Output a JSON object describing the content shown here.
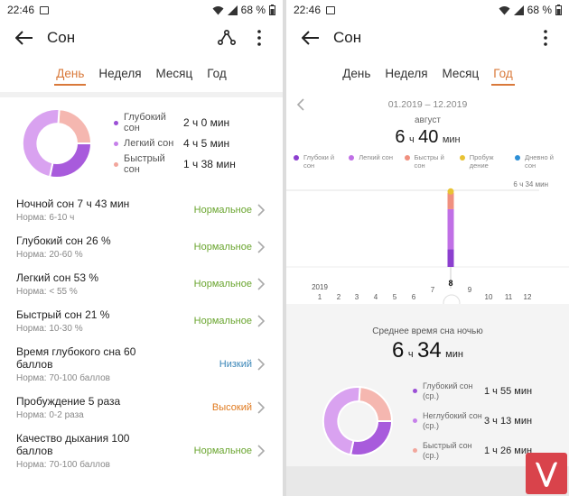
{
  "left": {
    "status": {
      "time": "22:46",
      "battery": "68 %"
    },
    "title": "Сон",
    "tabs": [
      "День",
      "Неделя",
      "Месяц",
      "Год"
    ],
    "donut_legend": [
      {
        "name": "Глубокий сон",
        "value": "2 ч 0 мин",
        "color": "#9b4fd6"
      },
      {
        "name": "Легкий сон",
        "value": "4 ч 5 мин",
        "color": "#c680ea"
      },
      {
        "name": "Быстрый сон",
        "value": "1 ч 38 мин",
        "color": "#f2a69c"
      }
    ],
    "rows": [
      {
        "title": "Ночной сон  7 ч 43 мин",
        "norm": "Норма: 6-10 ч",
        "status": "Нормальное"
      },
      {
        "title": "Глубокий сон  26 %",
        "norm": "Норма: 20-60 %",
        "status": "Нормальное"
      },
      {
        "title": "Легкий сон  53 %",
        "norm": "Норма: < 55 %",
        "status": "Нормальное"
      },
      {
        "title": "Быстрый сон  21 %",
        "norm": "Норма: 10-30 %",
        "status": "Нормальное"
      },
      {
        "title": "Время глубокого сна  60 баллов",
        "norm": "Норма: 70-100 баллов",
        "status": "Низкий"
      },
      {
        "title": "Пробуждение  5 раза",
        "norm": "Норма: 0-2 раза",
        "status": "Высокий"
      },
      {
        "title": "Качество дыхания  100 баллов",
        "norm": "Норма: 70-100 баллов",
        "status": "Нормальное"
      }
    ]
  },
  "right": {
    "status": {
      "time": "22:46",
      "battery": "68 %"
    },
    "title": "Сон",
    "tabs": [
      "День",
      "Неделя",
      "Месяц",
      "Год"
    ],
    "range": "01.2019 – 12.2019",
    "month": "август",
    "value": {
      "h": "6",
      "h_unit": "ч",
      "m": "40",
      "m_unit": "мин"
    },
    "chart_legend": [
      {
        "name": "Глубоки й сон",
        "color": "#8c3fcf"
      },
      {
        "name": "Легкий сон",
        "color": "#c070e6"
      },
      {
        "name": "Быстры й сон",
        "color": "#f0907f"
      },
      {
        "name": "Пробуж дение",
        "color": "#e8c234"
      },
      {
        "name": "Дневно й сон",
        "color": "#2d8fd6"
      }
    ],
    "avg": {
      "title": "Среднее время сна ночью",
      "h": "6",
      "h_unit": "ч",
      "m": "34",
      "m_unit": "мин",
      "legend": [
        {
          "name": "Глубокий сон (ср.)",
          "value": "1 ч 55 мин",
          "color": "#9b4fd6"
        },
        {
          "name": "Неглубокий сон (ср.)",
          "value": "3 ч 13 мин",
          "color": "#c680ea"
        },
        {
          "name": "Быстрый сон (ср.)",
          "value": "1 ч 26 мин",
          "color": "#f2a69c"
        }
      ]
    }
  },
  "chart_data": {
    "type": "bar",
    "year_label": "2019",
    "categories": [
      "1",
      "2",
      "3",
      "4",
      "5",
      "6",
      "7",
      "8",
      "9",
      "10",
      "11",
      "12"
    ],
    "selected": "8",
    "reference_line": "6 ч 34 мин",
    "series": [
      {
        "name": "Глубокий сон",
        "values": [
          0,
          0,
          0,
          0,
          0,
          0,
          0,
          1.5,
          0,
          0,
          0,
          0
        ]
      },
      {
        "name": "Легкий сон",
        "values": [
          0,
          0,
          0,
          0,
          0,
          0,
          0,
          3.4,
          0,
          0,
          0,
          0
        ]
      },
      {
        "name": "Быстрый сон",
        "values": [
          0,
          0,
          0,
          0,
          0,
          0,
          0,
          1.4,
          0,
          0,
          0,
          0
        ]
      },
      {
        "name": "Пробуждение",
        "values": [
          0,
          0,
          0,
          0,
          0,
          0,
          0,
          0.2,
          0,
          0,
          0,
          0
        ]
      }
    ]
  }
}
